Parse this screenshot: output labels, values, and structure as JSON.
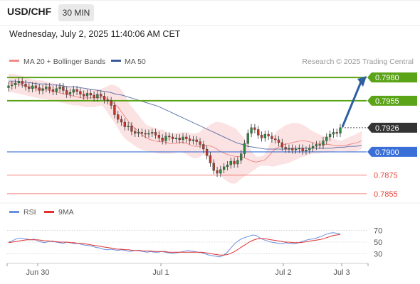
{
  "header": {
    "pair": "USD/CHF",
    "timeframe": "30 MIN",
    "datetime": "Wednesday, July 2, 2025 11:40:06 AM CET"
  },
  "colors": {
    "support_line": "#3a6fd8",
    "resistance_line": "#5ba317",
    "target_arrow": "#2e5fa0",
    "level_red": "#e8443a",
    "bollinger_fill": "#fbdada",
    "ma20": "#f08a8a",
    "ma50": "#3c5a9a",
    "rsi": "#6a8fe0",
    "rsi_ma": "#e03030",
    "candle_up": "#2b8a3e",
    "candle_down": "#c0392b"
  },
  "legend": {
    "ma20_label": "MA 20 + Bollinger Bands",
    "ma50_label": "MA 50",
    "credit": "Research © 2025 Trading Central"
  },
  "rsi_legend": {
    "rsi_label": "RSI",
    "ma_label": "9MA"
  },
  "chart_data": [
    {
      "type": "candlestick",
      "x_ticks": [
        "Jun 30",
        "Jul 1",
        "Jul 2",
        "Jul 3"
      ],
      "ylim": [
        0.7845,
        0.799
      ],
      "current_price": 0.7926,
      "levels": [
        {
          "value": 0.798,
          "label": "0.7980",
          "role": "resistance",
          "style": "green-filled"
        },
        {
          "value": 0.7955,
          "label": "0.7955",
          "role": "resistance",
          "style": "green-filled"
        },
        {
          "value": 0.7926,
          "label": "0.7926",
          "role": "current",
          "style": "dark-filled"
        },
        {
          "value": 0.79,
          "label": "0.7900",
          "role": "pivot",
          "style": "blue-filled"
        },
        {
          "value": 0.7875,
          "label": "0.7875",
          "role": "support",
          "style": "red-text"
        },
        {
          "value": 0.7855,
          "label": "0.7855",
          "role": "support",
          "style": "red-text"
        }
      ],
      "closes": [
        0.7971,
        0.7972,
        0.7974,
        0.7976,
        0.7973,
        0.797,
        0.7968,
        0.7971,
        0.7969,
        0.7966,
        0.7968,
        0.797,
        0.7967,
        0.7965,
        0.7968,
        0.797,
        0.7966,
        0.7962,
        0.7964,
        0.7967,
        0.7965,
        0.7962,
        0.796,
        0.7963,
        0.7961,
        0.7958,
        0.7962,
        0.796,
        0.7956,
        0.7955,
        0.795,
        0.794,
        0.7935,
        0.7932,
        0.7927,
        0.7928,
        0.7922,
        0.792,
        0.7921,
        0.792,
        0.7919,
        0.792,
        0.7921,
        0.7918,
        0.7915,
        0.7912,
        0.7917,
        0.7916,
        0.7914,
        0.7915,
        0.7913,
        0.7916,
        0.7914,
        0.7912,
        0.7913,
        0.7911,
        0.7908,
        0.7903,
        0.7896,
        0.7888,
        0.788,
        0.7877,
        0.7881,
        0.7884,
        0.7886,
        0.789,
        0.7887,
        0.7891,
        0.7898,
        0.7909,
        0.792,
        0.7926,
        0.7924,
        0.7918,
        0.7915,
        0.7919,
        0.7917,
        0.7914,
        0.7913,
        0.791,
        0.7905,
        0.7903,
        0.7904,
        0.7902,
        0.7903,
        0.7904,
        0.7901,
        0.7902,
        0.7904,
        0.7906,
        0.7908,
        0.7907,
        0.7912,
        0.7916,
        0.7919,
        0.7921,
        0.792,
        0.7926
      ],
      "bollinger_upper": [
        0.7984,
        0.7984,
        0.7983,
        0.7982,
        0.7981,
        0.7979,
        0.7978,
        0.7977,
        0.7977,
        0.7976,
        0.7975,
        0.7974,
        0.7973,
        0.7972,
        0.7971,
        0.797,
        0.7969,
        0.7968,
        0.7968,
        0.7967,
        0.7967,
        0.7967,
        0.7967,
        0.7968,
        0.797,
        0.7972,
        0.7972,
        0.797,
        0.7966,
        0.7958,
        0.795,
        0.7945,
        0.794,
        0.7934,
        0.7929,
        0.7927,
        0.7926,
        0.7924,
        0.7924,
        0.7921,
        0.792,
        0.792,
        0.7921,
        0.7921,
        0.7921,
        0.792,
        0.792,
        0.7921,
        0.7925,
        0.7927,
        0.793,
        0.7932,
        0.7932,
        0.7931,
        0.7929,
        0.7927,
        0.7925,
        0.792,
        0.7915,
        0.7908,
        0.79,
        0.7895,
        0.7895,
        0.7897,
        0.7905,
        0.7915,
        0.7922,
        0.7925,
        0.7928,
        0.793,
        0.7931,
        0.7931,
        0.793,
        0.7928,
        0.7925,
        0.7922,
        0.792,
        0.7918,
        0.7917,
        0.7916,
        0.7914,
        0.7913,
        0.7912,
        0.7914,
        0.7916,
        0.7918,
        0.792,
        0.7922
      ],
      "bollinger_lower": [
        0.7964,
        0.7964,
        0.7963,
        0.7962,
        0.7961,
        0.796,
        0.7959,
        0.7958,
        0.7957,
        0.7957,
        0.7956,
        0.7955,
        0.7954,
        0.7953,
        0.7952,
        0.7951,
        0.795,
        0.795,
        0.7949,
        0.7948,
        0.7948,
        0.7948,
        0.7949,
        0.795,
        0.7945,
        0.7938,
        0.7932,
        0.7925,
        0.7918,
        0.7913,
        0.791,
        0.7907,
        0.7904,
        0.7902,
        0.7901,
        0.79,
        0.7899,
        0.7898,
        0.7898,
        0.7898,
        0.7898,
        0.7899,
        0.79,
        0.7899,
        0.7897,
        0.7894,
        0.7893,
        0.7894,
        0.7897,
        0.7895,
        0.789,
        0.7883,
        0.7877,
        0.7871,
        0.7868,
        0.7866,
        0.7866,
        0.787,
        0.7873,
        0.7876,
        0.7879,
        0.7882,
        0.7885,
        0.7885,
        0.7885,
        0.7884,
        0.7885,
        0.7886,
        0.7887,
        0.7888,
        0.789,
        0.7892,
        0.7894,
        0.7895,
        0.7897,
        0.7898,
        0.7898,
        0.7899,
        0.7899,
        0.79,
        0.79,
        0.7901,
        0.7901,
        0.7901,
        0.79,
        0.79,
        0.7901,
        0.7903
      ],
      "ma20": [
        0.7974,
        0.7974,
        0.7973,
        0.7972,
        0.7971,
        0.797,
        0.7969,
        0.7968,
        0.7967,
        0.7967,
        0.7966,
        0.7965,
        0.7964,
        0.7963,
        0.7962,
        0.7961,
        0.796,
        0.7959,
        0.7958,
        0.7958,
        0.7958,
        0.7958,
        0.7958,
        0.7959,
        0.7958,
        0.7955,
        0.7952,
        0.7948,
        0.7942,
        0.7936,
        0.793,
        0.7926,
        0.7922,
        0.7918,
        0.7915,
        0.7913,
        0.7912,
        0.7911,
        0.7911,
        0.791,
        0.7909,
        0.7909,
        0.791,
        0.791,
        0.7909,
        0.7907,
        0.7906,
        0.7906,
        0.7907,
        0.7907,
        0.7906,
        0.7904,
        0.7901,
        0.7899,
        0.7897,
        0.7896,
        0.7895,
        0.7895,
        0.7894,
        0.7892,
        0.789,
        0.7889,
        0.789,
        0.7891,
        0.7895,
        0.79,
        0.7904,
        0.7906,
        0.7908,
        0.7909,
        0.791,
        0.7911,
        0.7912,
        0.7912,
        0.7911,
        0.791,
        0.7909,
        0.7909,
        0.7908,
        0.7908,
        0.7907,
        0.7907,
        0.7907,
        0.7907,
        0.7908,
        0.7909,
        0.791,
        0.7912
      ],
      "ma50": [
        0.7976,
        0.7976,
        0.7975,
        0.7975,
        0.7974,
        0.7973,
        0.7973,
        0.7972,
        0.7972,
        0.7971,
        0.797,
        0.797,
        0.7969,
        0.7968,
        0.7967,
        0.7966,
        0.7965,
        0.7964,
        0.7962,
        0.7961,
        0.7959,
        0.7957,
        0.7955,
        0.7953,
        0.7951,
        0.7949,
        0.7946,
        0.7943,
        0.794,
        0.7937,
        0.7934,
        0.7931,
        0.7928,
        0.7925,
        0.7922,
        0.7919,
        0.7916,
        0.7913,
        0.791,
        0.7908,
        0.7906,
        0.7905,
        0.7904,
        0.7903,
        0.7903,
        0.7903,
        0.7903,
        0.7903,
        0.7904,
        0.7904,
        0.7904,
        0.7904,
        0.7904,
        0.7904,
        0.7904,
        0.7905,
        0.7905,
        0.7906,
        0.7906,
        0.7907
      ]
    },
    {
      "type": "line",
      "name": "RSI",
      "ylim": [
        20,
        80
      ],
      "y_ticks": [
        30,
        50,
        70
      ],
      "rsi": [
        50,
        52,
        55,
        57,
        56,
        55,
        54,
        55,
        52,
        50,
        49,
        51,
        52,
        50,
        49,
        48,
        50,
        49,
        47,
        48,
        46,
        45,
        44,
        43,
        41,
        40,
        38,
        37,
        38,
        37,
        36,
        37,
        36,
        34,
        35,
        36,
        35,
        34,
        33,
        34,
        33,
        33,
        34,
        33,
        32,
        31,
        32,
        33,
        34,
        36,
        35,
        34,
        33,
        32,
        30,
        28,
        27,
        26,
        25,
        28,
        33,
        40,
        47,
        52,
        56,
        58,
        60,
        62,
        61,
        57,
        54,
        52,
        50,
        49,
        48,
        47,
        49,
        48,
        47,
        48,
        50,
        52,
        54,
        55,
        56,
        58,
        60,
        63,
        65,
        66,
        65,
        64
      ],
      "rsi_ma": [
        49,
        50,
        51,
        52,
        53,
        54,
        54,
        54,
        54,
        53,
        52,
        52,
        51,
        51,
        50,
        50,
        50,
        49,
        49,
        48,
        48,
        47,
        46,
        45,
        44,
        43,
        42,
        41,
        40,
        39,
        38,
        38,
        37,
        37,
        36,
        36,
        36,
        35,
        35,
        35,
        34,
        34,
        34,
        34,
        33,
        33,
        33,
        33,
        33,
        33,
        33,
        33,
        33,
        33,
        32,
        31,
        30,
        29,
        28,
        28,
        29,
        31,
        34,
        38,
        42,
        46,
        50,
        53,
        55,
        56,
        56,
        55,
        54,
        53,
        52,
        51,
        50,
        50,
        49,
        49,
        49,
        50,
        51,
        52,
        53,
        54,
        55,
        57,
        59,
        61,
        62,
        63
      ]
    }
  ]
}
